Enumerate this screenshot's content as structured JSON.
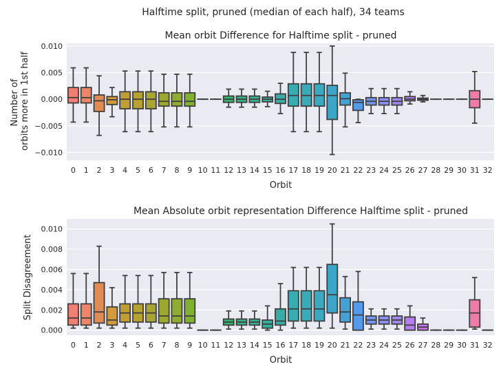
{
  "figure": {
    "suptitle": "Halftime split, pruned (median of each half), 34 teams"
  },
  "chart_data": [
    {
      "type": "box",
      "title": "Mean orbit Difference for Halftime split - pruned",
      "xlabel": "Orbit",
      "ylabel_lines": [
        "Number of",
        "orbits more in 1st half"
      ],
      "ylim": [
        -0.0115,
        0.0105
      ],
      "yticks": [
        -0.01,
        -0.005,
        0.0,
        0.005,
        0.01
      ],
      "ytick_labels": [
        "−0.010",
        "−0.005",
        "0.000",
        "0.005",
        "0.010"
      ],
      "grid": true,
      "legend": "none",
      "categories": [
        "0",
        "1",
        "2",
        "3",
        "4",
        "5",
        "6",
        "7",
        "8",
        "9",
        "10",
        "11",
        "12",
        "13",
        "14",
        "15",
        "16",
        "17",
        "18",
        "19",
        "20",
        "21",
        "22",
        "23",
        "24",
        "25",
        "26",
        "27",
        "28",
        "29",
        "30",
        "31",
        "32"
      ],
      "boxes": [
        {
          "whislo": -0.0043,
          "q1": -0.0007,
          "med": 0.0003,
          "q3": 0.0022,
          "whishi": 0.0059
        },
        {
          "whislo": -0.0043,
          "q1": -0.0007,
          "med": 0.0003,
          "q3": 0.0022,
          "whishi": 0.0059
        },
        {
          "whislo": -0.0068,
          "q1": -0.0023,
          "med": -0.0003,
          "q3": 0.0008,
          "whishi": 0.0044
        },
        {
          "whislo": -0.0033,
          "q1": -0.001,
          "med": -0.0001,
          "q3": 0.0005,
          "whishi": 0.0022
        },
        {
          "whislo": -0.0061,
          "q1": -0.0018,
          "med": 0.0,
          "q3": 0.0014,
          "whishi": 0.0053
        },
        {
          "whislo": -0.0061,
          "q1": -0.0018,
          "med": 0.0,
          "q3": 0.0014,
          "whishi": 0.0053
        },
        {
          "whislo": -0.0061,
          "q1": -0.0018,
          "med": 0.0,
          "q3": 0.0014,
          "whishi": 0.0053
        },
        {
          "whislo": -0.0052,
          "q1": -0.0013,
          "med": -0.0004,
          "q3": 0.0012,
          "whishi": 0.0047
        },
        {
          "whislo": -0.0052,
          "q1": -0.0013,
          "med": -0.0004,
          "q3": 0.0012,
          "whishi": 0.0047
        },
        {
          "whislo": -0.0052,
          "q1": -0.0013,
          "med": -0.0004,
          "q3": 0.0012,
          "whishi": 0.0047
        },
        {
          "whislo": 0.0,
          "q1": 0.0,
          "med": 0.0,
          "q3": 0.0,
          "whishi": 0.0
        },
        {
          "whislo": 0.0,
          "q1": 0.0,
          "med": 0.0,
          "q3": 0.0,
          "whishi": 0.0
        },
        {
          "whislo": -0.0015,
          "q1": -0.0006,
          "med": 0.0,
          "q3": 0.0006,
          "whishi": 0.0019
        },
        {
          "whislo": -0.0015,
          "q1": -0.0006,
          "med": 0.0,
          "q3": 0.0006,
          "whishi": 0.0019
        },
        {
          "whislo": -0.0015,
          "q1": -0.0006,
          "med": 0.0,
          "q3": 0.0006,
          "whishi": 0.0019
        },
        {
          "whislo": -0.0014,
          "q1": -0.0005,
          "med": 0.0,
          "q3": 0.0004,
          "whishi": 0.0015
        },
        {
          "whislo": -0.0027,
          "q1": -0.0008,
          "med": 0.0,
          "q3": 0.001,
          "whishi": 0.003
        },
        {
          "whislo": -0.0061,
          "q1": -0.0013,
          "med": 0.0007,
          "q3": 0.0029,
          "whishi": 0.0088
        },
        {
          "whislo": -0.0061,
          "q1": -0.0013,
          "med": 0.0007,
          "q3": 0.0029,
          "whishi": 0.0088
        },
        {
          "whislo": -0.0061,
          "q1": -0.0013,
          "med": 0.0007,
          "q3": 0.0029,
          "whishi": 0.0088
        },
        {
          "whislo": -0.0104,
          "q1": -0.0038,
          "med": 0.0007,
          "q3": 0.0026,
          "whishi": 0.01
        },
        {
          "whislo": -0.0052,
          "q1": -0.0011,
          "med": 0.0001,
          "q3": 0.0012,
          "whishi": 0.0049
        },
        {
          "whislo": -0.0044,
          "q1": -0.0021,
          "med": -0.0006,
          "q3": -0.0001,
          "whishi": 0.0
        },
        {
          "whislo": -0.0027,
          "q1": -0.0011,
          "med": -0.0004,
          "q3": 0.0003,
          "whishi": 0.002
        },
        {
          "whislo": -0.0027,
          "q1": -0.0011,
          "med": -0.0004,
          "q3": 0.0003,
          "whishi": 0.002
        },
        {
          "whislo": -0.0027,
          "q1": -0.0011,
          "med": -0.0004,
          "q3": 0.0003,
          "whishi": 0.002
        },
        {
          "whislo": -0.0009,
          "q1": -0.0003,
          "med": 0.0,
          "q3": 0.0005,
          "whishi": 0.0014
        },
        {
          "whislo": -0.0005,
          "q1": -0.0002,
          "med": 0.0,
          "q3": 0.0002,
          "whishi": 0.0007
        },
        {
          "whislo": 0.0,
          "q1": 0.0,
          "med": 0.0,
          "q3": 0.0,
          "whishi": 0.0
        },
        {
          "whislo": 0.0,
          "q1": 0.0,
          "med": 0.0,
          "q3": 0.0,
          "whishi": 0.0
        },
        {
          "whislo": 0.0,
          "q1": 0.0,
          "med": 0.0,
          "q3": 0.0,
          "whishi": 0.0
        },
        {
          "whislo": -0.0045,
          "q1": -0.0016,
          "med": 0.0,
          "q3": 0.0016,
          "whishi": 0.0052
        },
        {
          "whislo": 0.0,
          "q1": 0.0,
          "med": 0.0,
          "q3": 0.0,
          "whishi": 0.0
        }
      ]
    },
    {
      "type": "box",
      "title": "Mean Absolute orbit representation Difference Halftime split - pruned",
      "xlabel": "Orbit",
      "ylabel_lines": [
        "Split Disagreement"
      ],
      "ylim": [
        -0.0005,
        0.011
      ],
      "yticks": [
        0.0,
        0.002,
        0.004,
        0.006,
        0.008,
        0.01
      ],
      "ytick_labels": [
        "0.000",
        "0.002",
        "0.004",
        "0.006",
        "0.008",
        "0.010"
      ],
      "grid": true,
      "legend": "none",
      "categories": [
        "0",
        "1",
        "2",
        "3",
        "4",
        "5",
        "6",
        "7",
        "8",
        "9",
        "10",
        "11",
        "12",
        "13",
        "14",
        "15",
        "16",
        "17",
        "18",
        "19",
        "20",
        "21",
        "22",
        "23",
        "24",
        "25",
        "26",
        "27",
        "28",
        "29",
        "30",
        "31",
        "32"
      ],
      "boxes": [
        {
          "whislo": 0.0002,
          "q1": 0.0005,
          "med": 0.0012,
          "q3": 0.0026,
          "whishi": 0.0056
        },
        {
          "whislo": 0.0002,
          "q1": 0.0005,
          "med": 0.0012,
          "q3": 0.0026,
          "whishi": 0.0056
        },
        {
          "whislo": 0.0002,
          "q1": 0.0007,
          "med": 0.0018,
          "q3": 0.0047,
          "whishi": 0.0083
        },
        {
          "whislo": 0.0002,
          "q1": 0.0005,
          "med": 0.001,
          "q3": 0.0023,
          "whishi": 0.0042
        },
        {
          "whislo": 0.0002,
          "q1": 0.0008,
          "med": 0.0017,
          "q3": 0.0026,
          "whishi": 0.0054
        },
        {
          "whislo": 0.0002,
          "q1": 0.0008,
          "med": 0.0017,
          "q3": 0.0026,
          "whishi": 0.0054
        },
        {
          "whislo": 0.0002,
          "q1": 0.0008,
          "med": 0.0017,
          "q3": 0.0026,
          "whishi": 0.0054
        },
        {
          "whislo": 0.0002,
          "q1": 0.0007,
          "med": 0.0014,
          "q3": 0.0031,
          "whishi": 0.0057
        },
        {
          "whislo": 0.0002,
          "q1": 0.0007,
          "med": 0.0014,
          "q3": 0.0031,
          "whishi": 0.0057
        },
        {
          "whislo": 0.0002,
          "q1": 0.0007,
          "med": 0.0014,
          "q3": 0.0031,
          "whishi": 0.0057
        },
        {
          "whislo": 0.0,
          "q1": 0.0,
          "med": 0.0,
          "q3": 0.0,
          "whishi": 0.0
        },
        {
          "whislo": 0.0,
          "q1": 0.0,
          "med": 0.0,
          "q3": 0.0,
          "whishi": 0.0
        },
        {
          "whislo": 0.0001,
          "q1": 0.0005,
          "med": 0.0008,
          "q3": 0.0011,
          "whishi": 0.0019
        },
        {
          "whislo": 0.0001,
          "q1": 0.0005,
          "med": 0.0008,
          "q3": 0.0011,
          "whishi": 0.0019
        },
        {
          "whislo": 0.0001,
          "q1": 0.0005,
          "med": 0.0008,
          "q3": 0.0011,
          "whishi": 0.0019
        },
        {
          "whislo": 0.0,
          "q1": 0.0002,
          "med": 0.0006,
          "q3": 0.001,
          "whishi": 0.0024
        },
        {
          "whislo": 0.0,
          "q1": 0.0005,
          "med": 0.0009,
          "q3": 0.0021,
          "whishi": 0.0046
        },
        {
          "whislo": 0.0002,
          "q1": 0.0009,
          "med": 0.0021,
          "q3": 0.0039,
          "whishi": 0.0062
        },
        {
          "whislo": 0.0002,
          "q1": 0.0009,
          "med": 0.0021,
          "q3": 0.0039,
          "whishi": 0.0062
        },
        {
          "whislo": 0.0002,
          "q1": 0.0009,
          "med": 0.0021,
          "q3": 0.0039,
          "whishi": 0.0062
        },
        {
          "whislo": 0.0002,
          "q1": 0.0017,
          "med": 0.0035,
          "q3": 0.0065,
          "whishi": 0.0105
        },
        {
          "whislo": 0.0001,
          "q1": 0.0008,
          "med": 0.0018,
          "q3": 0.0032,
          "whishi": 0.0053
        },
        {
          "whislo": 0.0,
          "q1": 0.0,
          "med": 0.0015,
          "q3": 0.0028,
          "whishi": 0.0058
        },
        {
          "whislo": 0.0001,
          "q1": 0.0006,
          "med": 0.001,
          "q3": 0.0014,
          "whishi": 0.0021
        },
        {
          "whislo": 0.0001,
          "q1": 0.0006,
          "med": 0.001,
          "q3": 0.0014,
          "whishi": 0.0021
        },
        {
          "whislo": 0.0001,
          "q1": 0.0006,
          "med": 0.001,
          "q3": 0.0014,
          "whishi": 0.0021
        },
        {
          "whislo": 0.0,
          "q1": 0.0,
          "med": 0.0005,
          "q3": 0.0013,
          "whishi": 0.0024
        },
        {
          "whislo": 0.0,
          "q1": 0.0,
          "med": 0.0003,
          "q3": 0.0006,
          "whishi": 0.0012
        },
        {
          "whislo": 0.0,
          "q1": 0.0,
          "med": 0.0,
          "q3": 0.0,
          "whishi": 0.0
        },
        {
          "whislo": 0.0,
          "q1": 0.0,
          "med": 0.0,
          "q3": 0.0,
          "whishi": 0.0
        },
        {
          "whislo": 0.0,
          "q1": 0.0,
          "med": 0.0,
          "q3": 0.0,
          "whishi": 0.0
        },
        {
          "whislo": 0.0001,
          "q1": 0.0003,
          "med": 0.0017,
          "q3": 0.003,
          "whishi": 0.0052
        },
        {
          "whislo": 0.0,
          "q1": 0.0,
          "med": 0.0,
          "q3": 0.0,
          "whishi": 0.0
        }
      ]
    }
  ],
  "colors": {
    "plot_background": "#eaeaf2",
    "grid": "#ffffff",
    "line": "#3f3f3f",
    "palette": [
      "#f07f73",
      "#ef8467",
      "#e08d55",
      "#d29a3b",
      "#c19e34",
      "#b5a232",
      "#a8a532",
      "#9ca931",
      "#8fae31",
      "#80b131",
      "#66b636",
      "#43ba43",
      "#35b46f",
      "#36b285",
      "#37b192",
      "#37af9d",
      "#38ada7",
      "#39acb1",
      "#3aaab9",
      "#3ba9c0",
      "#3ca6c8",
      "#43a1d3",
      "#559ae8",
      "#7495ef",
      "#8e8ff2",
      "#a388f4",
      "#b57ff3",
      "#c875f1",
      "#d96be4",
      "#e86bd2",
      "#ec73bf",
      "#ee7ba8",
      "#f07f91"
    ]
  }
}
